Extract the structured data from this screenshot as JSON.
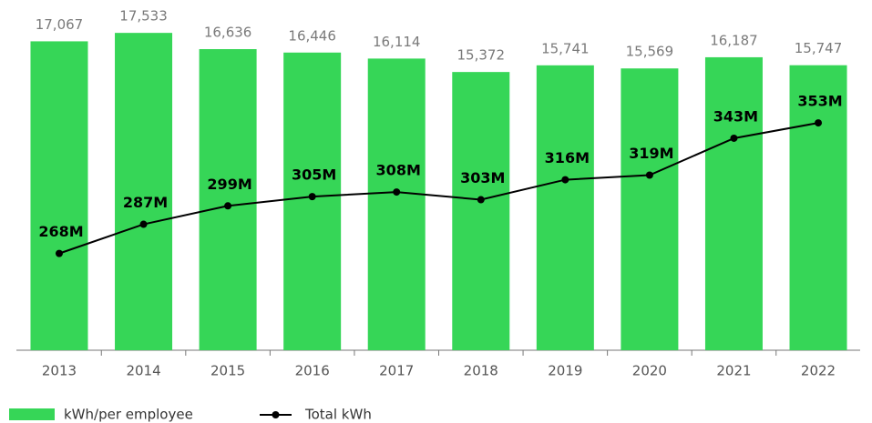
{
  "chart_data": {
    "type": "bar",
    "categories": [
      "2013",
      "2014",
      "2015",
      "2016",
      "2017",
      "2018",
      "2019",
      "2020",
      "2021",
      "2022"
    ],
    "series": [
      {
        "name": "kWh/per employee",
        "type": "bar",
        "color": "#36d657",
        "values": [
          17067,
          17533,
          16636,
          16446,
          16114,
          15372,
          15741,
          15569,
          16187,
          15747
        ],
        "value_labels": [
          "17,067",
          "17,533",
          "16,636",
          "16,446",
          "16,114",
          "15,372",
          "15,741",
          "15,569",
          "16,187",
          "15,747"
        ]
      },
      {
        "name": "Total kWh",
        "type": "line",
        "axis": "y2",
        "color": "#000000",
        "values": [
          268000000,
          287000000,
          299000000,
          305000000,
          308000000,
          303000000,
          316000000,
          319000000,
          343000000,
          353000000
        ],
        "value_labels": [
          "268M",
          "287M",
          "299M",
          "305M",
          "308M",
          "303M",
          "316M",
          "319M",
          "343M",
          "353M"
        ]
      }
    ],
    "ylim": [
      0,
      19350
    ],
    "y2lim": [
      205000000,
      433000000
    ]
  }
}
